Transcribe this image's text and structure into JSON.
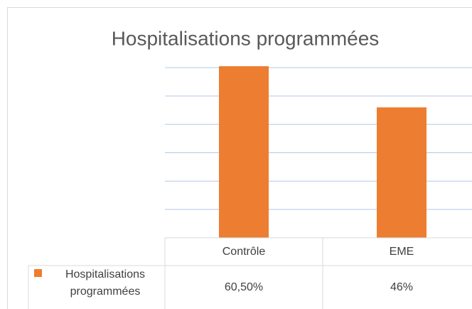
{
  "chart_data": {
    "type": "bar",
    "title": "Hospitalisations programmées",
    "categories": [
      "Contrôle",
      "EME"
    ],
    "series": [
      {
        "name": "Hospitalisations programmées",
        "color": "#ed7d31",
        "values": [
          60.5,
          46
        ],
        "value_labels": [
          "60,50%",
          "46%"
        ]
      }
    ],
    "ylim": [
      0,
      60
    ],
    "yticks": [
      0,
      10,
      20,
      30,
      40,
      50,
      60
    ],
    "grid": true,
    "data_table": true
  }
}
